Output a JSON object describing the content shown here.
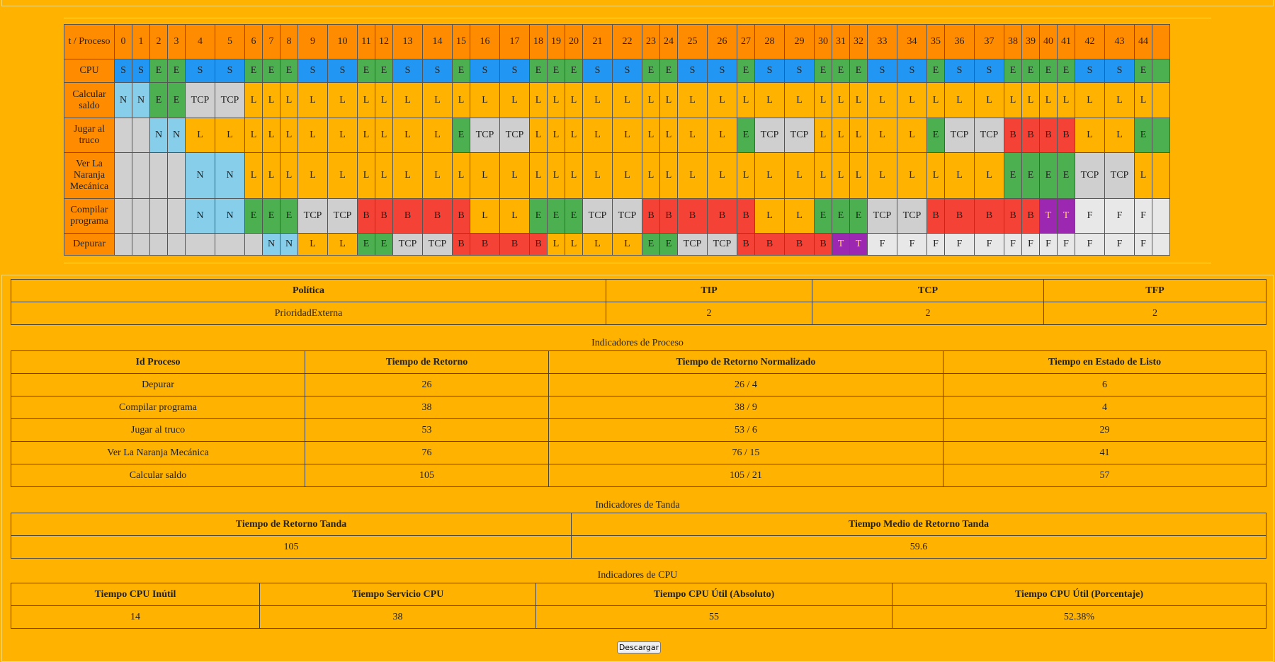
{
  "gantt": {
    "corner_label": "t / Proceso",
    "times": [
      "0",
      "1",
      "2",
      "3",
      "4",
      "5",
      "6",
      "7",
      "8",
      "9",
      "10",
      "11",
      "12",
      "13",
      "14",
      "15",
      "16",
      "17",
      "18",
      "19",
      "20",
      "21",
      "22",
      "23",
      "24",
      "25",
      "26",
      "27",
      "28",
      "29",
      "30",
      "31",
      "32",
      "33",
      "34",
      "35",
      "36",
      "37",
      "38",
      "39",
      "40",
      "41",
      "42",
      "43",
      "44"
    ],
    "rows": [
      {
        "label": "CPU",
        "cells": [
          "S",
          "S",
          "E",
          "E",
          "S",
          "S",
          "E",
          "E",
          "E",
          "S",
          "S",
          "E",
          "E",
          "S",
          "S",
          "E",
          "S",
          "S",
          "E",
          "E",
          "E",
          "S",
          "S",
          "E",
          "E",
          "S",
          "S",
          "E",
          "S",
          "S",
          "E",
          "E",
          "E",
          "S",
          "S",
          "E",
          "S",
          "S",
          "E",
          "E",
          "E",
          "E",
          "S",
          "S",
          "E"
        ]
      },
      {
        "label": "Calcular saldo",
        "cells": [
          "N",
          "N",
          "E",
          "E",
          "TCP",
          "TCP",
          "L",
          "L",
          "L",
          "L",
          "L",
          "L",
          "L",
          "L",
          "L",
          "L",
          "L",
          "L",
          "L",
          "L",
          "L",
          "L",
          "L",
          "L",
          "L",
          "L",
          "L",
          "L",
          "L",
          "L",
          "L",
          "L",
          "L",
          "L",
          "L",
          "L",
          "L",
          "L",
          "L",
          "L",
          "L",
          "L",
          "L",
          "L",
          "L"
        ]
      },
      {
        "label": "Jugar al truco",
        "cells": [
          "",
          "",
          "N",
          "N",
          "L",
          "L",
          "L",
          "L",
          "L",
          "L",
          "L",
          "L",
          "L",
          "L",
          "L",
          "E",
          "TCP",
          "TCP",
          "L",
          "L",
          "L",
          "L",
          "L",
          "L",
          "L",
          "L",
          "L",
          "E",
          "TCP",
          "TCP",
          "L",
          "L",
          "L",
          "L",
          "L",
          "E",
          "TCP",
          "TCP",
          "B",
          "B",
          "B",
          "B",
          "L",
          "L",
          "E"
        ]
      },
      {
        "label": "Ver La Naranja Mecánica",
        "cells": [
          "",
          "",
          "",
          "",
          "N",
          "N",
          "L",
          "L",
          "L",
          "L",
          "L",
          "L",
          "L",
          "L",
          "L",
          "L",
          "L",
          "L",
          "L",
          "L",
          "L",
          "L",
          "L",
          "L",
          "L",
          "L",
          "L",
          "L",
          "L",
          "L",
          "L",
          "L",
          "L",
          "L",
          "L",
          "L",
          "L",
          "L",
          "E",
          "E",
          "E",
          "E",
          "TCP",
          "TCP",
          "L"
        ]
      },
      {
        "label": "Compilar programa",
        "cells": [
          "",
          "",
          "",
          "",
          "N",
          "N",
          "E",
          "E",
          "E",
          "TCP",
          "TCP",
          "B",
          "B",
          "B",
          "B",
          "B",
          "L",
          "L",
          "E",
          "E",
          "E",
          "TCP",
          "TCP",
          "B",
          "B",
          "B",
          "B",
          "B",
          "L",
          "L",
          "E",
          "E",
          "E",
          "TCP",
          "TCP",
          "B",
          "B",
          "B",
          "B",
          "B",
          "T",
          "T",
          "F",
          "F",
          "F"
        ]
      },
      {
        "label": "Depurar",
        "cells": [
          "",
          "",
          "",
          "",
          "",
          "",
          "",
          "N",
          "N",
          "L",
          "L",
          "E",
          "E",
          "TCP",
          "TCP",
          "B",
          "B",
          "B",
          "B",
          "L",
          "L",
          "L",
          "L",
          "E",
          "E",
          "TCP",
          "TCP",
          "B",
          "B",
          "B",
          "B",
          "T",
          "T",
          "F",
          "F",
          "F",
          "F",
          "F",
          "F",
          "F",
          "F",
          "F",
          "F",
          "F",
          "F"
        ]
      }
    ]
  },
  "politica": {
    "headers": [
      "Política",
      "TIP",
      "TCP",
      "TFP"
    ],
    "values": [
      "PrioridadExterna",
      "2",
      "2",
      "2"
    ]
  },
  "proceso": {
    "caption": "Indicadores de Proceso",
    "headers": [
      "Id Proceso",
      "Tiempo de Retorno",
      "Tiempo de Retorno Normalizado",
      "Tiempo en Estado de Listo"
    ],
    "rows": [
      [
        "Depurar",
        "26",
        "26 / 4",
        "6"
      ],
      [
        "Compilar programa",
        "38",
        "38 / 9",
        "4"
      ],
      [
        "Jugar al truco",
        "53",
        "53 / 6",
        "29"
      ],
      [
        "Ver La Naranja Mecánica",
        "76",
        "76 / 15",
        "41"
      ],
      [
        "Calcular saldo",
        "105",
        "105 / 21",
        "57"
      ]
    ]
  },
  "tanda": {
    "caption": "Indicadores de Tanda",
    "headers": [
      "Tiempo de Retorno Tanda",
      "Tiempo Medio de Retorno Tanda"
    ],
    "values": [
      "105",
      "59.6"
    ]
  },
  "cpu": {
    "caption": "Indicadores de CPU",
    "headers": [
      "Tiempo CPU Inútil",
      "Tiempo Servicio CPU",
      "Tiempo CPU Útil (Absoluto)",
      "Tiempo CPU Útil (Porcentaje)"
    ],
    "values": [
      "14",
      "38",
      "55",
      "52.38%"
    ]
  },
  "download_label": "Descargar"
}
